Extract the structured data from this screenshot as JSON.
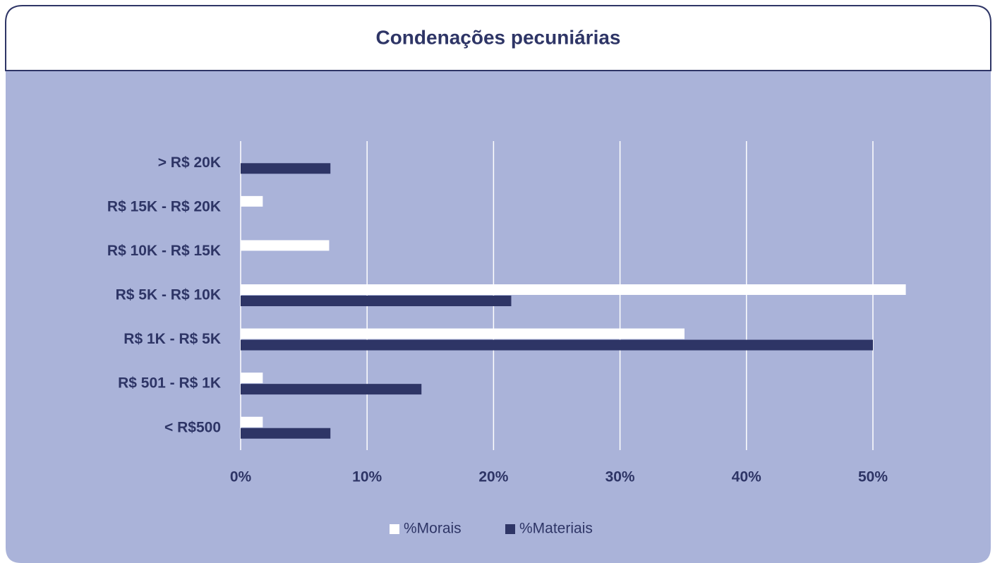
{
  "chart_data": {
    "type": "barh",
    "title": "Condenações pecuniárias",
    "categories": [
      "> R$ 20K",
      "R$ 15K - R$ 20K",
      "R$ 10K - R$ 15K",
      "R$ 5K - R$ 10K",
      "R$ 1K - R$ 5K",
      "R$ 501 - R$ 1K",
      "< R$500"
    ],
    "series": [
      {
        "name": "%Morais",
        "color": "#ffffff",
        "values": [
          0,
          1.75,
          7.0,
          52.6,
          35.1,
          1.75,
          1.75
        ]
      },
      {
        "name": "%Materiais",
        "color": "#2e3566",
        "values": [
          7.1,
          0,
          0,
          21.4,
          50.0,
          14.3,
          7.1
        ]
      }
    ],
    "xlim": [
      0,
      50
    ],
    "xticks": [
      {
        "value": 0,
        "label": "0%"
      },
      {
        "value": 10,
        "label": "10%"
      },
      {
        "value": 20,
        "label": "20%"
      },
      {
        "value": 30,
        "label": "30%"
      },
      {
        "value": 40,
        "label": "40%"
      },
      {
        "value": 50,
        "label": "50%"
      }
    ],
    "grid": true,
    "legend": "bottom"
  }
}
